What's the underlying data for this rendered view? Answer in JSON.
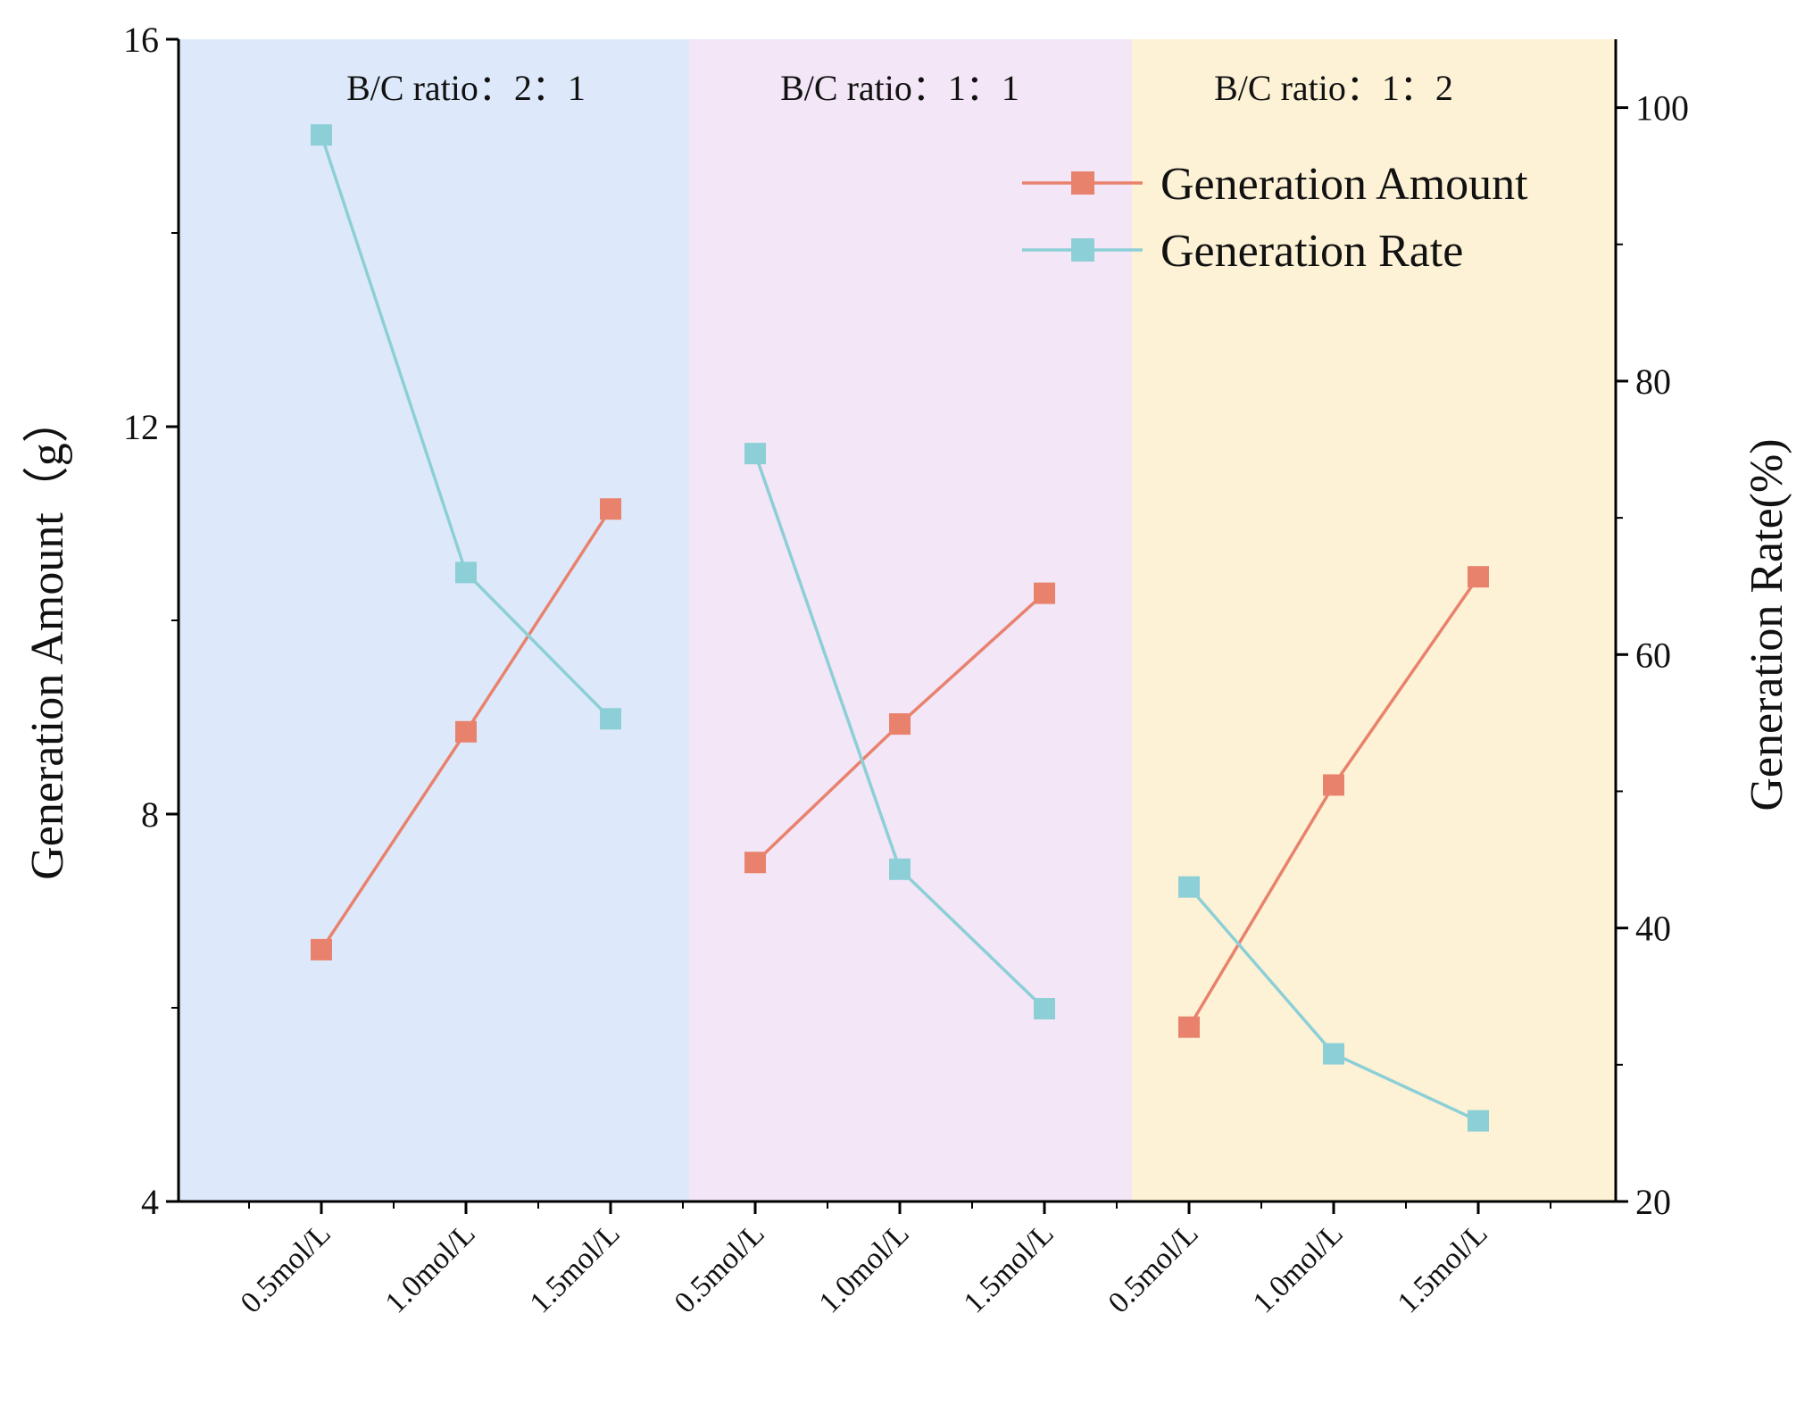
{
  "chart_data": {
    "type": "line",
    "title": "",
    "categories": [
      "0.5mol/L",
      "1.0mol/L",
      "1.5mol/L",
      "0.5mol/L",
      "1.0mol/L",
      "1.5mol/L",
      "0.5mol/L",
      "1.0mol/L",
      "1.5mol/L"
    ],
    "regions": [
      {
        "label": "B/C ratio：2：1",
        "color": "#dde9fa"
      },
      {
        "label": "B/C ratio：1：1",
        "color": "#f2e6f7"
      },
      {
        "label": "B/C ratio：1：2",
        "color": "#fdf2d6"
      }
    ],
    "series": [
      {
        "name": "Generation Amount",
        "axis": "left",
        "color": "#e9826d",
        "values": [
          6.6,
          8.85,
          11.15,
          7.5,
          8.93,
          10.28,
          5.8,
          8.3,
          10.45
        ]
      },
      {
        "name": "Generation Rate",
        "axis": "right",
        "color": "#8dcfd6",
        "values": [
          98.0,
          66.0,
          55.3,
          74.7,
          44.3,
          34.1,
          43.0,
          30.8,
          25.9
        ]
      }
    ],
    "ylabel_left": "Generation Amount（g）",
    "ylabel_right": "Generation Rate(%)",
    "ylim_left": [
      4,
      16
    ],
    "yticks_left": [
      4,
      8,
      12,
      16
    ],
    "ylim_right": [
      20,
      105
    ],
    "yticks_right": [
      20,
      40,
      60,
      80,
      100
    ],
    "legend_position": "top-right"
  }
}
